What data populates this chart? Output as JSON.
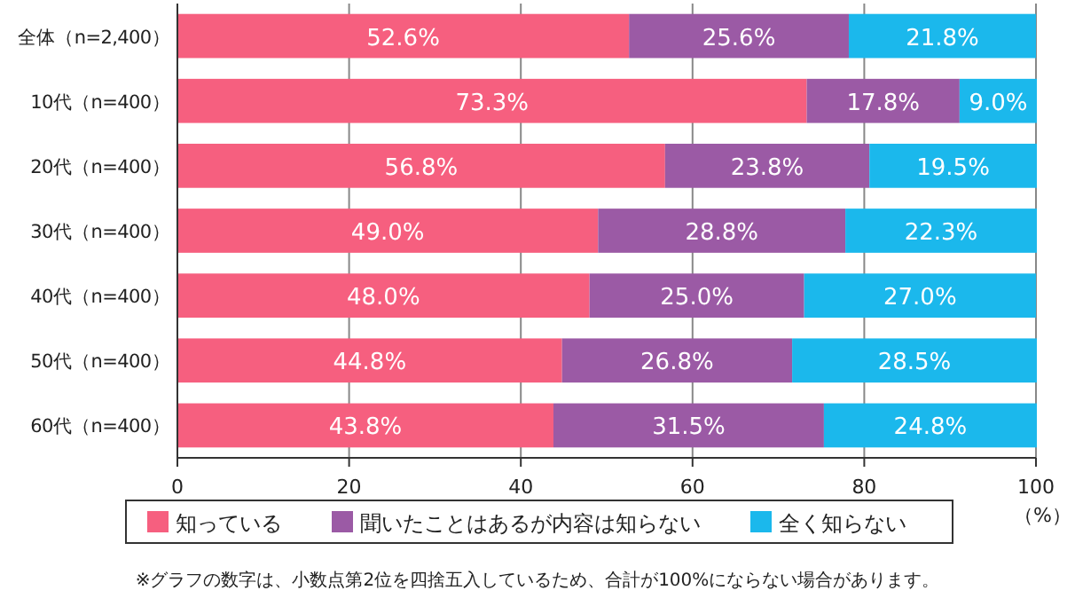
{
  "chart_data": {
    "type": "bar",
    "orientation": "horizontal",
    "stacked": true,
    "categories": [
      "全体（n=2,400）",
      "10代（n=400）",
      "20代（n=400）",
      "30代（n=400）",
      "40代（n=400）",
      "50代（n=400）",
      "60代（n=400）"
    ],
    "series": [
      {
        "name": "知っている",
        "color": "#f65f7f",
        "values": [
          52.6,
          73.3,
          56.8,
          49.0,
          48.0,
          44.8,
          43.8
        ],
        "value_labels": [
          "52.6%",
          "73.3%",
          "56.8%",
          "49.0%",
          "48.0%",
          "44.8%",
          "43.8%"
        ]
      },
      {
        "name": "聞いたことはあるが内容は知らない",
        "color": "#9b5aa5",
        "values": [
          25.6,
          17.8,
          23.8,
          28.8,
          25.0,
          26.8,
          31.5
        ],
        "value_labels": [
          "25.6%",
          "17.8%",
          "23.8%",
          "28.8%",
          "25.0%",
          "26.8%",
          "31.5%"
        ]
      },
      {
        "name": "全く知らない",
        "color": "#1bb8ec",
        "values": [
          21.8,
          9.0,
          19.5,
          22.3,
          27.0,
          28.5,
          24.8
        ],
        "value_labels": [
          "21.8%",
          "9.0%",
          "19.5%",
          "22.3%",
          "27.0%",
          "28.5%",
          "24.8%"
        ]
      }
    ],
    "xlim": [
      0,
      100
    ],
    "xticks": [
      0,
      20,
      40,
      60,
      80,
      100
    ],
    "xlabel": "（%）",
    "grid": "x",
    "legend": "bottom",
    "annotations": [
      "※グラフの数字は、小数点第2位を四捨五入しているため、合計が100%にならない場合があります。"
    ]
  }
}
